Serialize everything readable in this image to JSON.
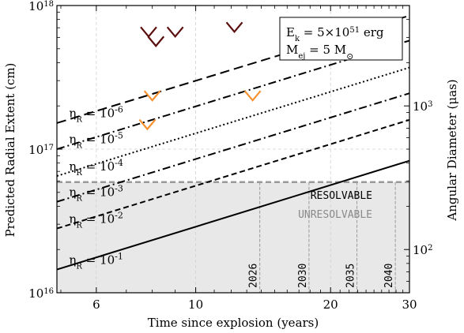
{
  "chart_data": {
    "type": "line",
    "xlabel": "Time since explosion (years)",
    "ylabel": "Predicted Radial Extent (cm)",
    "y2label": "Angular Diameter (μas)",
    "xscale": "log",
    "yscale": "log",
    "xlim": [
      4.9,
      30
    ],
    "ylim": [
      1e+16,
      1e+18
    ],
    "y2lim": [
      50,
      5000
    ],
    "x_ticks": [
      6,
      10,
      20,
      30
    ],
    "x_tick_labels": [
      "6",
      "10",
      "20",
      "30"
    ],
    "y_ticks": [
      1e+16,
      1e+17,
      1e+18
    ],
    "y_tick_labels": [
      {
        "base": "10",
        "exp": "16"
      },
      {
        "base": "10",
        "exp": "17"
      },
      {
        "base": "10",
        "exp": "18"
      }
    ],
    "y2_ticks": [
      100,
      1000
    ],
    "y2_tick_labels": [
      {
        "base": "10",
        "exp": "2"
      },
      {
        "base": "10",
        "exp": "3"
      }
    ],
    "grid": true,
    "series": [
      {
        "eta_exp": "-6",
        "style": "dash-long",
        "x": [
          4.9,
          30
        ],
        "y": [
          1.52e+17,
          8.5e+17
        ]
      },
      {
        "eta_exp": "-5",
        "style": "dash-dot",
        "x": [
          4.9,
          30
        ],
        "y": [
          1e+17,
          5.7e+17
        ]
      },
      {
        "eta_exp": "-4",
        "style": "dotted",
        "x": [
          4.9,
          30
        ],
        "y": [
          6.5e+16,
          3.7e+17
        ]
      },
      {
        "eta_exp": "-3",
        "style": "dash-dot",
        "x": [
          4.9,
          30
        ],
        "y": [
          4.3e+16,
          2.45e+17
        ]
      },
      {
        "eta_exp": "-2",
        "style": "dash",
        "x": [
          4.9,
          30
        ],
        "y": [
          2.8e+16,
          1.6e+17
        ]
      },
      {
        "eta_exp": "-1",
        "style": "solid",
        "x": [
          4.9,
          30
        ],
        "y": [
          1.45e+16,
          8.3e+16
        ]
      }
    ],
    "curve_label_prefix": "η",
    "curve_label_sub": "R",
    "curve_label_mid": " = 10",
    "upper_limits": [
      {
        "x": 7.85,
        "y": 6.4e+17,
        "color": "#5a0e0e"
      },
      {
        "x": 8.15,
        "y": 5.5e+17,
        "color": "#5a0e0e"
      },
      {
        "x": 9.0,
        "y": 6.4e+17,
        "color": "#5a0e0e"
      },
      {
        "x": 12.2,
        "y": 6.9e+17,
        "color": "#5a0e0e"
      },
      {
        "x": 8.0,
        "y": 2.3e+17,
        "color": "#f5922f"
      },
      {
        "x": 7.8,
        "y": 1.45e+17,
        "color": "#f5922f"
      },
      {
        "x": 13.4,
        "y": 2.3e+17,
        "color": "#f5922f"
      }
    ],
    "resolvable_limit_y": 5.9e+16,
    "resolvable_label": "RESOLVABLE",
    "unresolvable_label": "UNRESOLVABLE",
    "year_markers": [
      {
        "x": 13.9,
        "label": "2026"
      },
      {
        "x": 17.9,
        "label": "2030"
      },
      {
        "x": 22.9,
        "label": "2035"
      },
      {
        "x": 27.9,
        "label": "2040"
      }
    ],
    "legend": {
      "position": "top-right",
      "ek_sym": "E",
      "ek_sub": "k",
      "ek_val": " = 5×10",
      "ek_exp": "51",
      "ek_unit": " erg",
      "mej_sym": "M",
      "mej_sub": "ej",
      "mej_val": " = 5 M",
      "mej_sun": "⊙"
    },
    "colors": {
      "shade": "#e8e8e8",
      "limit_line": "#999999",
      "unresolvable_text": "#8a8a8a",
      "marker_dark": "#5a0e0e",
      "marker_orange": "#f5922f"
    }
  }
}
